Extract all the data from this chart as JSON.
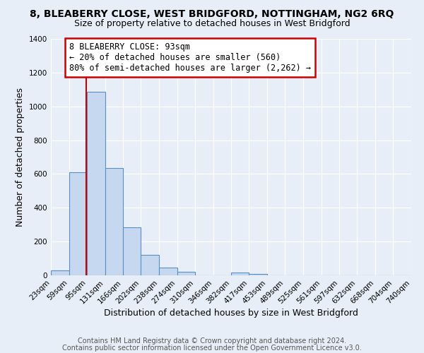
{
  "title": "8, BLEABERRY CLOSE, WEST BRIDGFORD, NOTTINGHAM, NG2 6RQ",
  "subtitle": "Size of property relative to detached houses in West Bridgford",
  "xlabel": "Distribution of detached houses by size in West Bridgford",
  "ylabel": "Number of detached properties",
  "bin_edges": [
    23,
    59,
    95,
    131,
    166,
    202,
    238,
    274,
    310,
    346,
    382,
    417,
    453,
    489,
    525,
    561,
    597,
    632,
    668,
    704,
    740
  ],
  "bin_counts": [
    30,
    610,
    1085,
    635,
    285,
    120,
    47,
    20,
    0,
    0,
    18,
    10,
    0,
    0,
    0,
    0,
    0,
    0,
    0,
    0
  ],
  "bar_color": "#c5d8f0",
  "bar_edge_color": "#5a8fc4",
  "background_color": "#e8eef7",
  "grid_color": "#ffffff",
  "property_size": 93,
  "vline_color": "#cc0000",
  "annotation_line1": "8 BLEABERRY CLOSE: 93sqm",
  "annotation_line2": "← 20% of detached houses are smaller (560)",
  "annotation_line3": "80% of semi-detached houses are larger (2,262) →",
  "annotation_box_color": "#ffffff",
  "annotation_box_edge_color": "#cc0000",
  "xlim_min": 23,
  "xlim_max": 740,
  "ylim_min": 0,
  "ylim_max": 1400,
  "tick_labels": [
    "23sqm",
    "59sqm",
    "95sqm",
    "131sqm",
    "166sqm",
    "202sqm",
    "238sqm",
    "274sqm",
    "310sqm",
    "346sqm",
    "382sqm",
    "417sqm",
    "453sqm",
    "489sqm",
    "525sqm",
    "561sqm",
    "597sqm",
    "632sqm",
    "668sqm",
    "704sqm",
    "740sqm"
  ],
  "footer_line1": "Contains HM Land Registry data © Crown copyright and database right 2024.",
  "footer_line2": "Contains public sector information licensed under the Open Government Licence v3.0.",
  "title_fontsize": 10,
  "subtitle_fontsize": 9,
  "axis_label_fontsize": 9,
  "tick_fontsize": 7.5,
  "annotation_fontsize": 8.5,
  "footer_fontsize": 7
}
